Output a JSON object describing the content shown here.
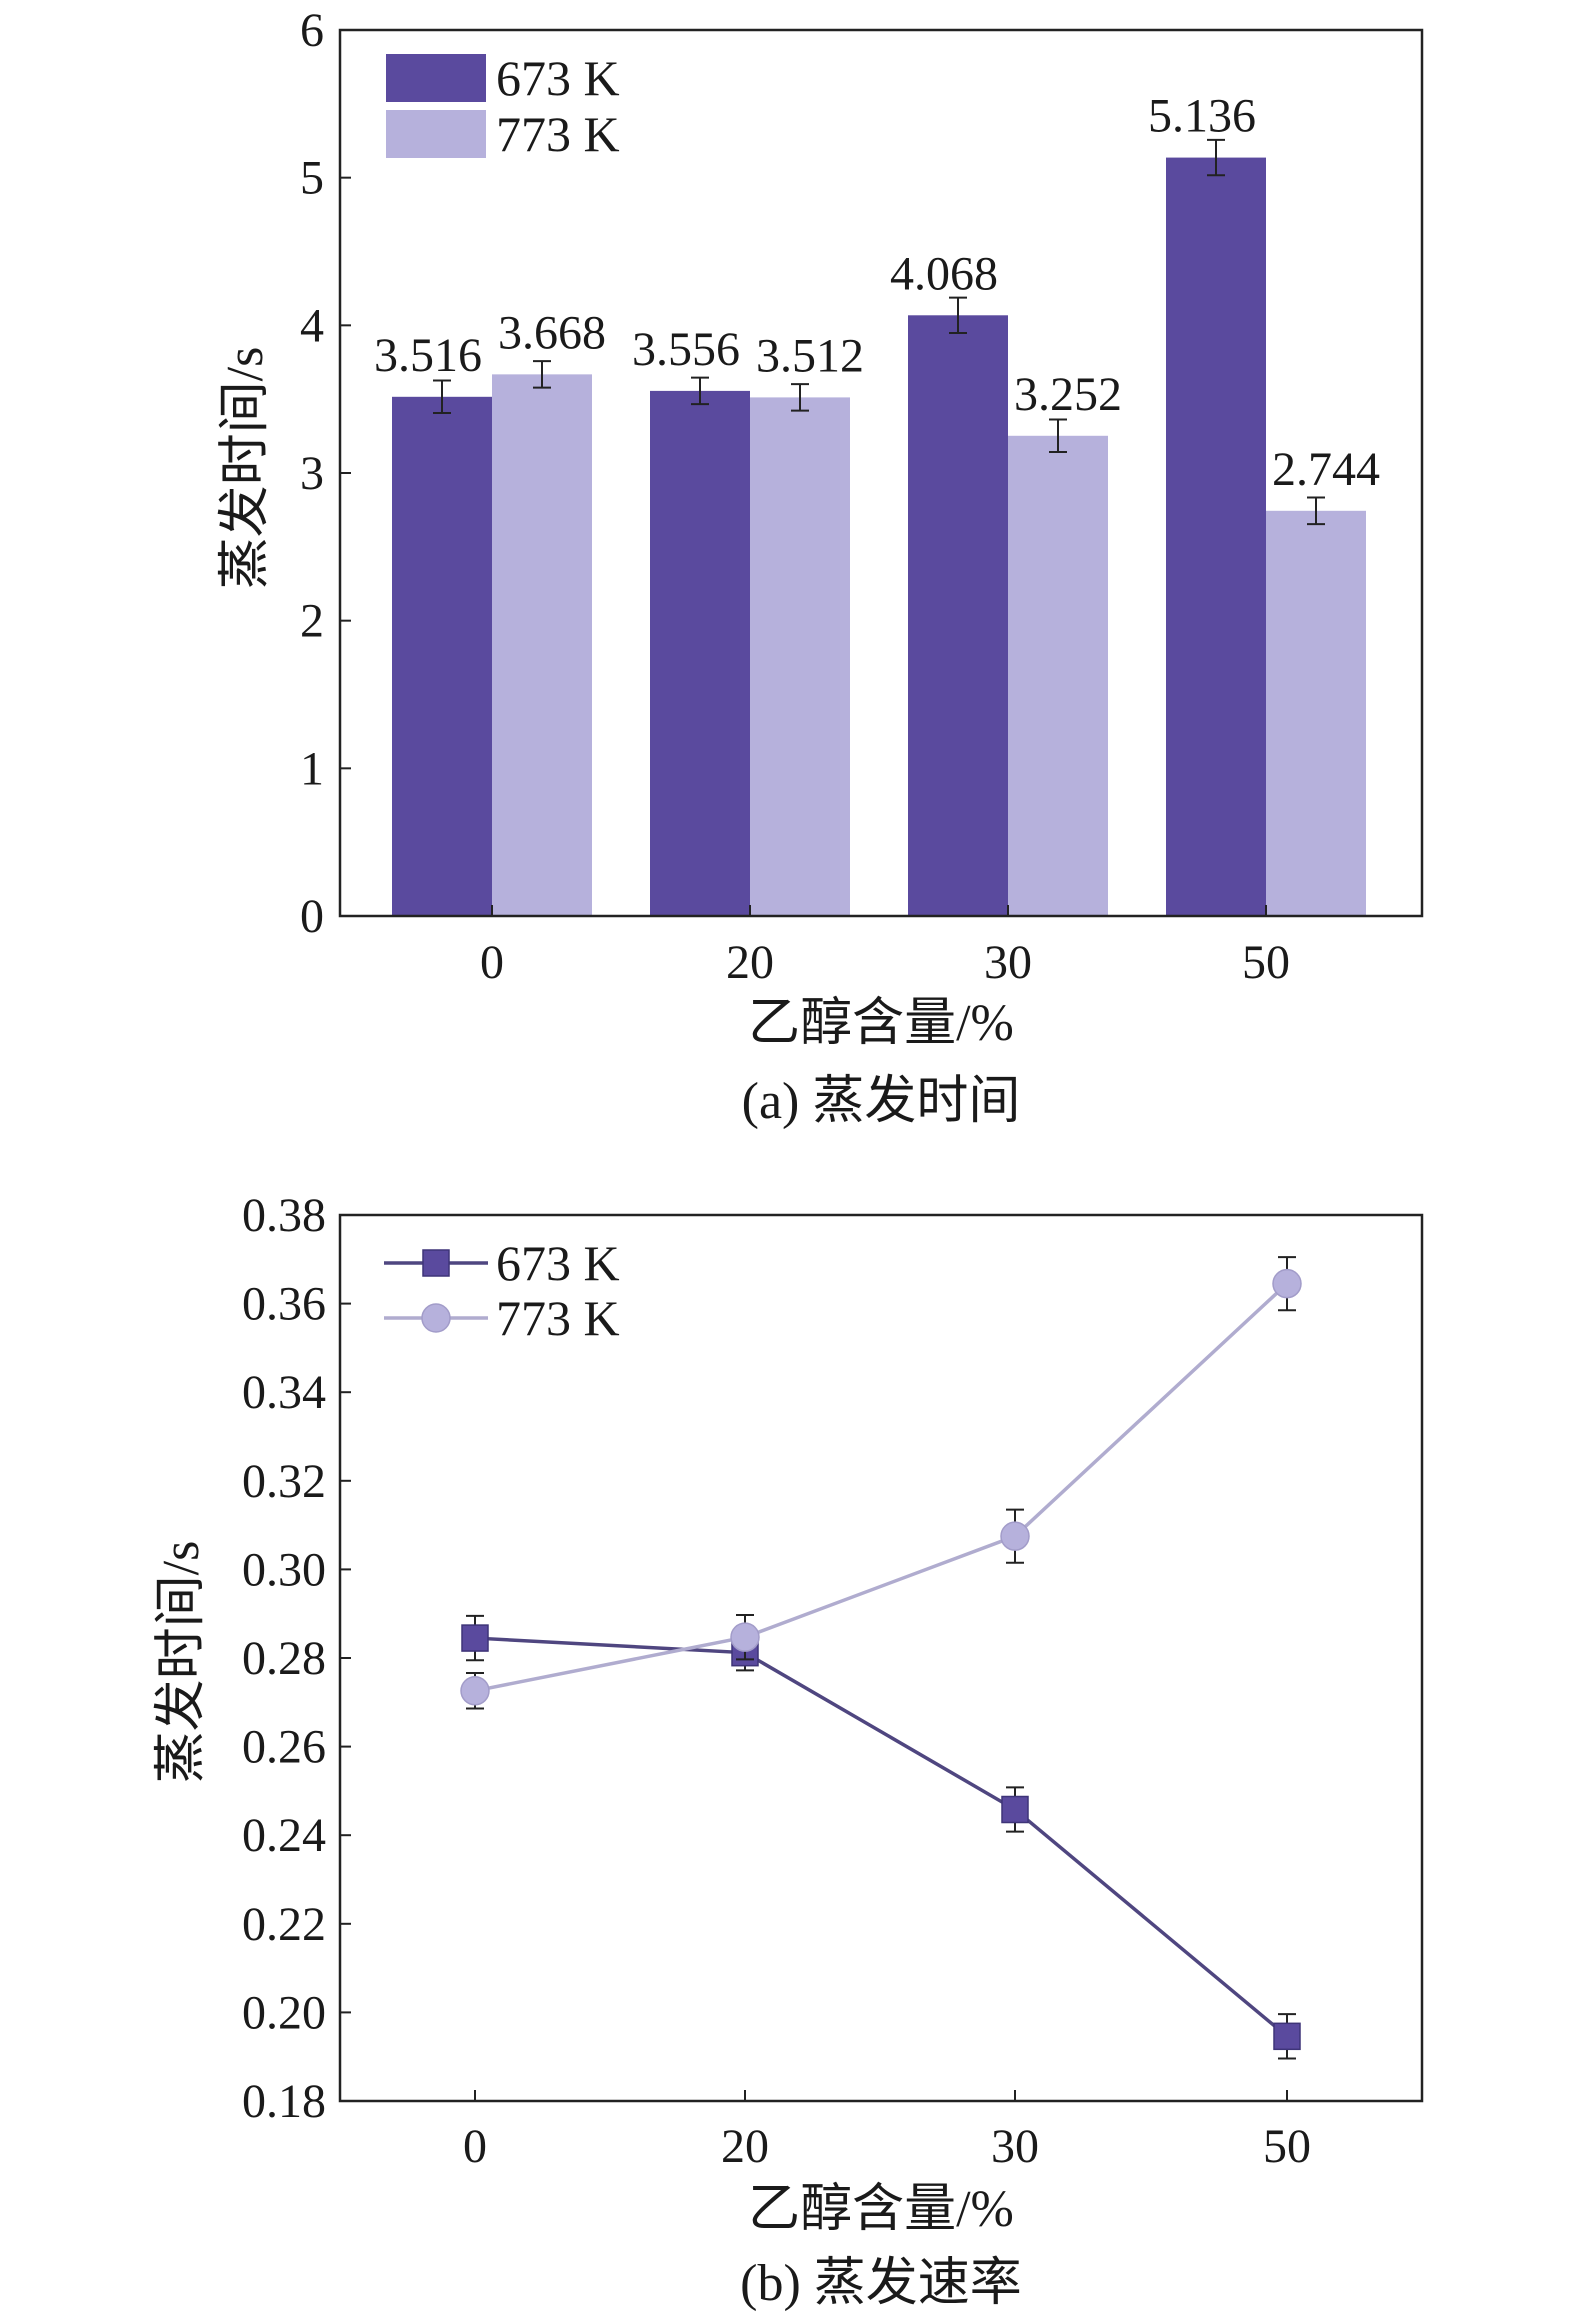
{
  "chart_data": [
    {
      "type": "bar",
      "caption": "(a) 蒸发时间",
      "xlabel": "乙醇含量/%",
      "ylabel": "蒸发时间/s",
      "categories": [
        "0",
        "20",
        "30",
        "50"
      ],
      "ylim": [
        0,
        6
      ],
      "yticks": [
        0,
        1,
        2,
        3,
        4,
        5,
        6
      ],
      "legend_position": "top-left",
      "grid": false,
      "series": [
        {
          "name": "673 K",
          "color": "#5a4a9e",
          "values": [
            3.516,
            3.556,
            4.068,
            5.136
          ],
          "labels": [
            "3.516",
            "3.556",
            "4.068",
            "5.136"
          ],
          "errors": [
            0.11,
            0.09,
            0.12,
            0.12
          ]
        },
        {
          "name": "773 K",
          "color": "#b6b1dc",
          "values": [
            3.668,
            3.512,
            3.252,
            2.744
          ],
          "labels": [
            "3.668",
            "3.512",
            "3.252",
            "2.744"
          ],
          "errors": [
            0.09,
            0.09,
            0.11,
            0.09
          ]
        }
      ]
    },
    {
      "type": "line",
      "caption": "(b) 蒸发速率",
      "xlabel": "乙醇含量/%",
      "ylabel": "蒸发时间/s",
      "categories": [
        "0",
        "20",
        "30",
        "50"
      ],
      "ylim": [
        0.18,
        0.38
      ],
      "yticks": [
        "0.18",
        "0.20",
        "0.22",
        "0.24",
        "0.26",
        "0.28",
        "0.30",
        "0.32",
        "0.34",
        "0.36",
        "0.38"
      ],
      "legend_position": "top-left",
      "grid": false,
      "series": [
        {
          "name": "673 K",
          "marker": "square",
          "color": "#5a4a9e",
          "line_color": "#4f4680",
          "values": [
            0.2845,
            0.2812,
            0.2458,
            0.1946
          ],
          "errors": [
            0.005,
            0.004,
            0.005,
            0.005
          ]
        },
        {
          "name": "773 K",
          "marker": "circle",
          "color": "#b6b1dc",
          "line_color": "#b0accf",
          "values": [
            0.2726,
            0.2847,
            0.3075,
            0.3645
          ],
          "errors": [
            0.004,
            0.005,
            0.006,
            0.006
          ]
        }
      ]
    }
  ]
}
